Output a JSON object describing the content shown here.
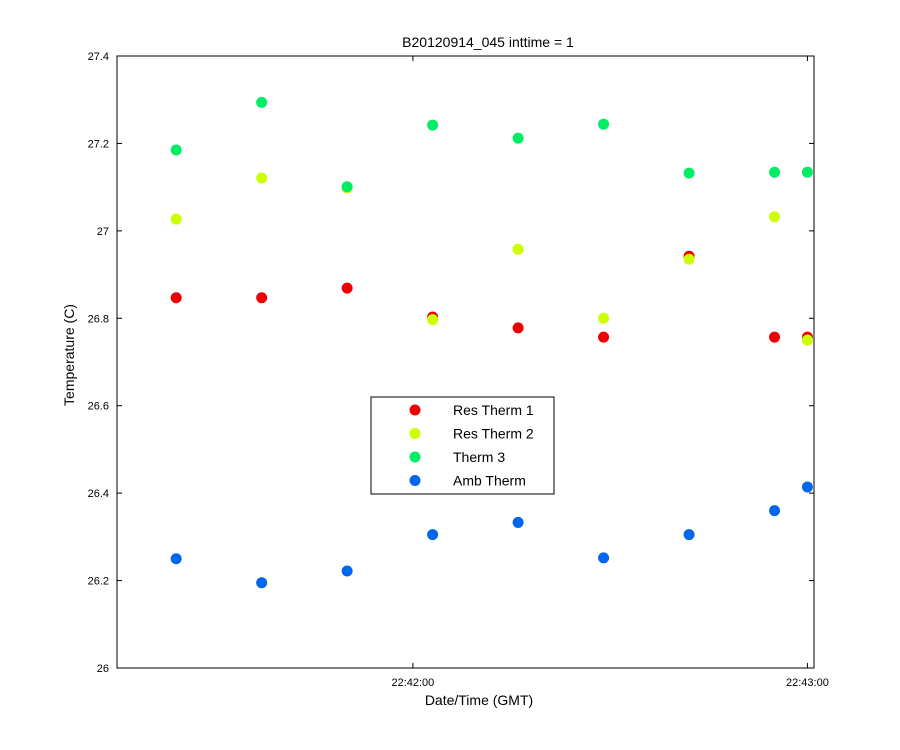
{
  "chart_data": {
    "type": "scatter",
    "title": "B20120914_045 inttime = 1",
    "xlabel": "Date/Time (GMT)",
    "ylabel": "Temperature (C)",
    "ylim": [
      26,
      27.4
    ],
    "yticks": [
      26,
      26.2,
      26.4,
      26.6,
      26.8,
      27,
      27.2,
      27.4
    ],
    "ytick_labels": [
      "26",
      "26.2",
      "26.4",
      "26.6",
      "26.8",
      "27",
      "27.2",
      "27.4"
    ],
    "xlim": [
      "22:41:15",
      "22:43:01"
    ],
    "xticks": [
      "22:42:00",
      "22:43:00"
    ],
    "xtick_labels": [
      "22:42:00",
      "22:43:00"
    ],
    "x": [
      "22:41:24",
      "22:41:37",
      "22:41:50",
      "22:42:03",
      "22:42:16",
      "22:42:29",
      "22:42:42",
      "22:42:55",
      "22:43:00"
    ],
    "legend_position": "center",
    "grid": false,
    "series": [
      {
        "name": "Res Therm 1",
        "color": "#ee0000",
        "values": [
          26.847,
          26.847,
          26.869,
          26.803,
          26.778,
          26.757,
          26.942,
          26.757,
          26.757
        ]
      },
      {
        "name": "Res Therm 2",
        "color": "#ccff00",
        "values": [
          27.027,
          27.121,
          27.098,
          26.797,
          26.958,
          26.8,
          26.935,
          27.032,
          26.75
        ]
      },
      {
        "name": "Therm 3",
        "color": "#00ee66",
        "values": [
          27.185,
          27.294,
          27.101,
          27.242,
          27.212,
          27.244,
          27.132,
          27.134,
          27.134
        ]
      },
      {
        "name": "Amb Therm",
        "color": "#0066ee",
        "values": [
          26.25,
          26.195,
          26.222,
          26.305,
          26.333,
          26.252,
          26.305,
          26.36,
          26.414
        ]
      }
    ]
  }
}
